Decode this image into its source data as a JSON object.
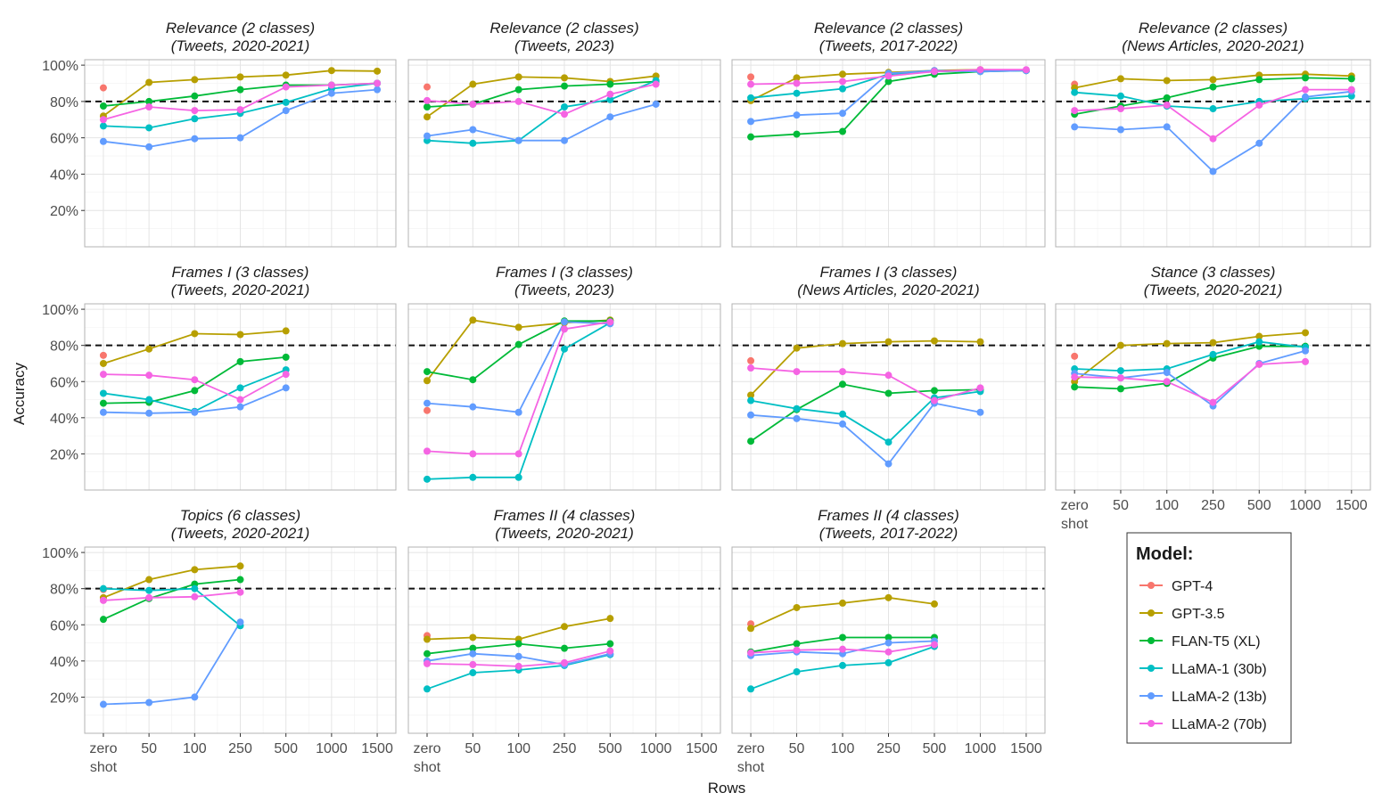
{
  "chart_data": {
    "type": "line",
    "y_axis_label": "Accuracy",
    "x_axis_label": "Rows",
    "x_ticks": [
      {
        "label": "zero",
        "label2": "shot"
      },
      {
        "label": "50",
        "label2": ""
      },
      {
        "label": "100",
        "label2": ""
      },
      {
        "label": "250",
        "label2": ""
      },
      {
        "label": "500",
        "label2": ""
      },
      {
        "label": "1000",
        "label2": ""
      },
      {
        "label": "1500",
        "label2": ""
      }
    ],
    "y_ticks": [
      {
        "value": 20,
        "label": "20%"
      },
      {
        "value": 40,
        "label": "40%"
      },
      {
        "value": 60,
        "label": "60%"
      },
      {
        "value": 80,
        "label": "80%"
      },
      {
        "value": 100,
        "label": "100%"
      }
    ],
    "ylim": [
      0,
      103
    ],
    "reference_line": 80,
    "legend": {
      "title": "Model:",
      "entries": [
        {
          "model": "GPT-4",
          "color": "#F8766D"
        },
        {
          "model": "GPT-3.5",
          "color": "#B79F00"
        },
        {
          "model": "FLAN-T5 (XL)",
          "color": "#00BA38"
        },
        {
          "model": "LLaMA-1 (30b)",
          "color": "#00BFC4"
        },
        {
          "model": "LLaMA-2 (13b)",
          "color": "#619CFF"
        },
        {
          "model": "LLaMA-2 (70b)",
          "color": "#F564E3"
        }
      ]
    },
    "panels": [
      {
        "title1": "Relevance (2 classes)",
        "title2": "(Tweets, 2020-2021)",
        "show_y": true,
        "show_x": false,
        "series": [
          {
            "model": "GPT-4",
            "values": [
              87.5
            ]
          },
          {
            "model": "GPT-3.5",
            "values": [
              72,
              90.5,
              92,
              93.5,
              94.5,
              97,
              96.7
            ]
          },
          {
            "model": "FLAN-T5 (XL)",
            "values": [
              77.5,
              80,
              83,
              86.5,
              89,
              89,
              90
            ]
          },
          {
            "model": "LLaMA-1 (30b)",
            "values": [
              66.5,
              65.5,
              70.5,
              73.5,
              79.5,
              87,
              90
            ]
          },
          {
            "model": "LLaMA-2 (13b)",
            "values": [
              58,
              55,
              59.5,
              60,
              75,
              84.5,
              86.5
            ]
          },
          {
            "model": "LLaMA-2 (70b)",
            "values": [
              70,
              77,
              75,
              75.5,
              88,
              89,
              90
            ]
          }
        ]
      },
      {
        "title1": "Relevance (2 classes)",
        "title2": "(Tweets, 2023)",
        "show_y": false,
        "show_x": false,
        "series": [
          {
            "model": "GPT-4",
            "values": [
              88
            ]
          },
          {
            "model": "GPT-3.5",
            "values": [
              71.5,
              89.5,
              93.5,
              93,
              91,
              94
            ]
          },
          {
            "model": "FLAN-T5 (XL)",
            "values": [
              77,
              78.5,
              86.5,
              88.5,
              89.5,
              91
            ]
          },
          {
            "model": "LLaMA-1 (30b)",
            "values": [
              58.5,
              57,
              58.5,
              77,
              81,
              91.5
            ]
          },
          {
            "model": "LLaMA-2 (13b)",
            "values": [
              61,
              64.5,
              58.5,
              58.5,
              71.5,
              78.5
            ]
          },
          {
            "model": "LLaMA-2 (70b)",
            "values": [
              80.5,
              78.5,
              80,
              73,
              84,
              89.5
            ]
          }
        ]
      },
      {
        "title1": "Relevance (2 classes)",
        "title2": "(Tweets, 2017-2022)",
        "show_y": false,
        "show_x": false,
        "series": [
          {
            "model": "GPT-4",
            "values": [
              93.5
            ]
          },
          {
            "model": "GPT-3.5",
            "values": [
              80.5,
              93,
              95,
              96,
              97,
              97.5,
              97
            ]
          },
          {
            "model": "FLAN-T5 (XL)",
            "values": [
              60.5,
              62,
              63.5,
              91,
              95,
              96.5,
              97
            ]
          },
          {
            "model": "LLaMA-1 (30b)",
            "values": [
              82,
              84.5,
              87,
              95,
              96.5,
              97,
              97
            ]
          },
          {
            "model": "LLaMA-2 (13b)",
            "values": [
              69,
              72.5,
              73.5,
              95.5,
              97,
              96.5,
              97
            ]
          },
          {
            "model": "LLaMA-2 (70b)",
            "values": [
              89.5,
              90,
              91,
              94,
              96.5,
              97.5,
              97.5
            ]
          }
        ]
      },
      {
        "title1": "Relevance (2 classes)",
        "title2": "(News Articles, 2020-2021)",
        "show_y": false,
        "show_x": false,
        "series": [
          {
            "model": "GPT-4",
            "values": [
              89.5
            ]
          },
          {
            "model": "GPT-3.5",
            "values": [
              87.5,
              92.5,
              91.5,
              92,
              94.5,
              95,
              94
            ]
          },
          {
            "model": "FLAN-T5 (XL)",
            "values": [
              73,
              77.5,
              82,
              88,
              92,
              93,
              92.5
            ]
          },
          {
            "model": "LLaMA-1 (30b)",
            "values": [
              85,
              83,
              77.5,
              76,
              80,
              81.5,
              83
            ]
          },
          {
            "model": "LLaMA-2 (13b)",
            "values": [
              66,
              64.5,
              66,
              41.5,
              57,
              82.5,
              85.5
            ]
          },
          {
            "model": "LLaMA-2 (70b)",
            "values": [
              75,
              76,
              78,
              59.5,
              78,
              86.5,
              86.5
            ]
          }
        ]
      },
      {
        "title1": "Frames I (3 classes)",
        "title2": "(Tweets, 2020-2021)",
        "show_y": true,
        "show_x": false,
        "series": [
          {
            "model": "GPT-4",
            "values": [
              74.5
            ]
          },
          {
            "model": "GPT-3.5",
            "values": [
              70,
              78,
              86.5,
              86,
              88
            ]
          },
          {
            "model": "FLAN-T5 (XL)",
            "values": [
              48,
              48.5,
              55,
              71,
              73.5
            ]
          },
          {
            "model": "LLaMA-1 (30b)",
            "values": [
              53.5,
              50,
              43.5,
              56.5,
              66.5
            ]
          },
          {
            "model": "LLaMA-2 (13b)",
            "values": [
              43,
              42.5,
              43,
              46,
              56.5
            ]
          },
          {
            "model": "LLaMA-2 (70b)",
            "values": [
              64,
              63.5,
              61,
              50,
              64
            ]
          }
        ]
      },
      {
        "title1": "Frames I (3 classes)",
        "title2": "(Tweets, 2023)",
        "show_y": false,
        "show_x": false,
        "series": [
          {
            "model": "GPT-4",
            "values": [
              44
            ]
          },
          {
            "model": "GPT-3.5",
            "values": [
              60.5,
              94,
              90,
              92.5,
              94
            ]
          },
          {
            "model": "FLAN-T5 (XL)",
            "values": [
              65.5,
              61,
              80.5,
              93.5,
              93.5
            ]
          },
          {
            "model": "LLaMA-1 (30b)",
            "values": [
              6,
              7,
              7,
              78,
              92.5
            ]
          },
          {
            "model": "LLaMA-2 (13b)",
            "values": [
              48,
              46,
              43,
              93,
              92
            ]
          },
          {
            "model": "LLaMA-2 (70b)",
            "values": [
              21.5,
              20,
              20,
              89,
              93
            ]
          }
        ]
      },
      {
        "title1": "Frames I (3 classes)",
        "title2": "(News Articles, 2020-2021)",
        "show_y": false,
        "show_x": false,
        "series": [
          {
            "model": "GPT-4",
            "values": [
              71.5
            ]
          },
          {
            "model": "GPT-3.5",
            "values": [
              52.5,
              78.5,
              81,
              82,
              82.5,
              82
            ]
          },
          {
            "model": "FLAN-T5 (XL)",
            "values": [
              27,
              44.5,
              58.5,
              53.5,
              55,
              55.5
            ]
          },
          {
            "model": "LLaMA-1 (30b)",
            "values": [
              49.5,
              45,
              42,
              26.5,
              51,
              54.5
            ]
          },
          {
            "model": "LLaMA-2 (13b)",
            "values": [
              41.5,
              39.5,
              36.5,
              14.5,
              48,
              43
            ]
          },
          {
            "model": "LLaMA-2 (70b)",
            "values": [
              67.5,
              65.5,
              65.5,
              63.5,
              49.5,
              56.5
            ]
          }
        ]
      },
      {
        "title1": "Stance (3 classes)",
        "title2": "(Tweets, 2020-2021)",
        "show_y": false,
        "show_x": true,
        "series": [
          {
            "model": "GPT-4",
            "values": [
              74
            ]
          },
          {
            "model": "GPT-3.5",
            "values": [
              60,
              80,
              81,
              81.5,
              85,
              87
            ]
          },
          {
            "model": "FLAN-T5 (XL)",
            "values": [
              57,
              56,
              59,
              73,
              79.5,
              79.5
            ]
          },
          {
            "model": "LLaMA-1 (30b)",
            "values": [
              67,
              66,
              67,
              75,
              82,
              79
            ]
          },
          {
            "model": "LLaMA-2 (13b)",
            "values": [
              64.5,
              62,
              65,
              46.5,
              70,
              77
            ]
          },
          {
            "model": "LLaMA-2 (70b)",
            "values": [
              62.5,
              62,
              60,
              48.5,
              69.5,
              71
            ]
          }
        ]
      },
      {
        "title1": "Topics (6 classes)",
        "title2": "(Tweets, 2020-2021)",
        "show_y": true,
        "show_x": true,
        "series": [
          {
            "model": "GPT-4",
            "values": [
              79.5
            ]
          },
          {
            "model": "GPT-3.5",
            "values": [
              75,
              85,
              90.5,
              92.5
            ]
          },
          {
            "model": "FLAN-T5 (XL)",
            "values": [
              63,
              74.5,
              82.5,
              85
            ]
          },
          {
            "model": "LLaMA-1 (30b)",
            "values": [
              80,
              79,
              80,
              59.5
            ]
          },
          {
            "model": "LLaMA-2 (13b)",
            "values": [
              16,
              17,
              20,
              61.5
            ]
          },
          {
            "model": "LLaMA-2 (70b)",
            "values": [
              73.5,
              75,
              75.5,
              78
            ]
          }
        ]
      },
      {
        "title1": "Frames II (4 classes)",
        "title2": "(Tweets, 2020-2021)",
        "show_y": false,
        "show_x": true,
        "series": [
          {
            "model": "GPT-4",
            "values": [
              54
            ]
          },
          {
            "model": "GPT-3.5",
            "values": [
              52,
              53,
              52,
              59,
              63.5
            ]
          },
          {
            "model": "FLAN-T5 (XL)",
            "values": [
              44,
              47,
              49.5,
              47,
              49.5
            ]
          },
          {
            "model": "LLaMA-1 (30b)",
            "values": [
              24.5,
              33.5,
              35,
              37.5,
              43.5
            ]
          },
          {
            "model": "LLaMA-2 (13b)",
            "values": [
              40,
              44,
              42.5,
              38,
              44
            ]
          },
          {
            "model": "LLaMA-2 (70b)",
            "values": [
              38.5,
              38,
              37,
              39,
              45.5
            ]
          }
        ]
      },
      {
        "title1": "Frames II (4 classes)",
        "title2": "(Tweets, 2017-2022)",
        "show_y": false,
        "show_x": true,
        "series": [
          {
            "model": "GPT-4",
            "values": [
              60.5
            ]
          },
          {
            "model": "GPT-3.5",
            "values": [
              58,
              69.5,
              72,
              75,
              71.5
            ]
          },
          {
            "model": "FLAN-T5 (XL)",
            "values": [
              45,
              49.5,
              53,
              53,
              53
            ]
          },
          {
            "model": "LLaMA-1 (30b)",
            "values": [
              24.5,
              34,
              37.5,
              39,
              48
            ]
          },
          {
            "model": "LLaMA-2 (13b)",
            "values": [
              43,
              45,
              44,
              50,
              51
            ]
          },
          {
            "model": "LLaMA-2 (70b)",
            "values": [
              44.5,
              46,
              46.5,
              45,
              49
            ]
          }
        ]
      }
    ]
  }
}
